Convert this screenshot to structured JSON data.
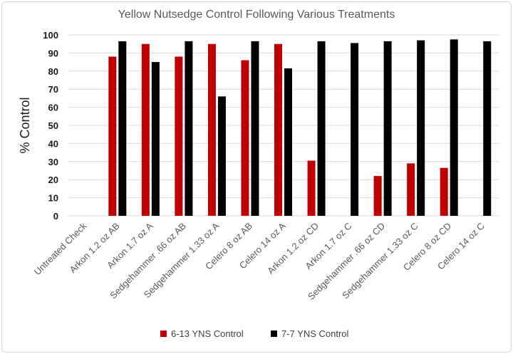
{
  "chart_data": {
    "type": "bar",
    "title": "Yellow Nutsedge Control Following Various Treatments",
    "xlabel": "",
    "ylabel": "% Control",
    "ylim": [
      0,
      100
    ],
    "yticks": [
      0,
      10,
      20,
      30,
      40,
      50,
      60,
      70,
      80,
      90,
      100
    ],
    "grid": true,
    "legend_position": "bottom",
    "categories": [
      "Untreated Check",
      "Arkon 1.2 oz AB",
      "Arkon 1.7 oz A",
      "Sedgehammer .66 oz AB",
      "Sedgehammer 1.33 oz A",
      "Celero 8 oz AB",
      "Celero 14 oz A",
      "Arkon 1.2 oz CD",
      "Arkon 1.7 oz C",
      "Sedgehammer .66 oz CD",
      "Sedgehammer 1.33 oz C",
      "Celero 8 oz CD",
      "Celero 14 oz C"
    ],
    "series": [
      {
        "name": "6-13 YNS Control",
        "color": "#c00000",
        "values": [
          0,
          88,
          95,
          88,
          95,
          86,
          95,
          30.5,
          0,
          22,
          29,
          26.5,
          0
        ]
      },
      {
        "name": "7-7 YNS Control",
        "color": "#000000",
        "values": [
          0,
          96.5,
          85,
          96.5,
          66,
          96.5,
          81.5,
          96.5,
          95.5,
          96.5,
          97,
          97.5,
          96.5
        ]
      }
    ]
  }
}
